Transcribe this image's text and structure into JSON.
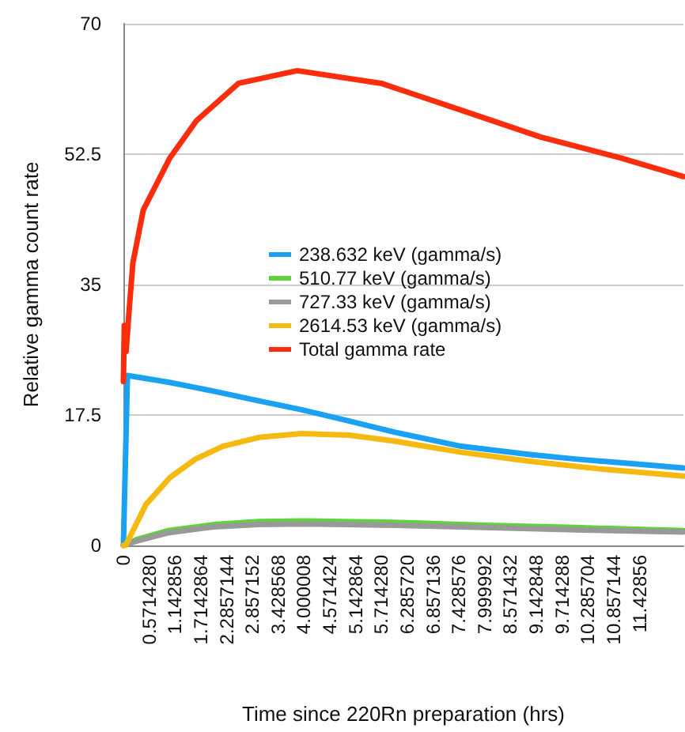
{
  "chart_data": {
    "type": "line",
    "xlabel": "Time since 220Rn preparation (hrs)",
    "ylabel": "Relative gamma count rate",
    "xlim": [
      0,
      12.4
    ],
    "ylim": [
      0,
      70
    ],
    "yticks": [
      0,
      {
        "value": 17.5,
        "label": "17.5"
      },
      35,
      {
        "value": 52.5,
        "label": "52.5"
      },
      70
    ],
    "xticks": [
      0,
      {
        "value": 0.571428,
        "label": "0.5714280"
      },
      {
        "value": 1.142856,
        "label": "1.142856"
      },
      {
        "value": 1.7142864,
        "label": "1.7142864"
      },
      {
        "value": 2.2857144,
        "label": "2.2857144"
      },
      {
        "value": 2.857152,
        "label": "2.857152"
      },
      {
        "value": 3.428568,
        "label": "3.428568"
      },
      {
        "value": 4.000008,
        "label": "4.000008"
      },
      {
        "value": 4.571424,
        "label": "4.571424"
      },
      {
        "value": 5.142864,
        "label": "5.142864"
      },
      {
        "value": 5.71428,
        "label": "5.714280"
      },
      {
        "value": 6.28572,
        "label": "6.285720"
      },
      {
        "value": 6.857136,
        "label": "6.857136"
      },
      {
        "value": 7.428576,
        "label": "7.428576"
      },
      {
        "value": 7.999992,
        "label": "7.999992"
      },
      {
        "value": 8.571432,
        "label": "8.571432"
      },
      {
        "value": 9.142848,
        "label": "9.142848"
      },
      {
        "value": 9.714288,
        "label": "9.714288"
      },
      {
        "value": 10.285704,
        "label": "10.285704"
      },
      {
        "value": 10.857144,
        "label": "10.857144"
      },
      {
        "value": 11.42856,
        "label": "11.42856"
      }
    ],
    "grid": "y",
    "legend": "center",
    "marker": "none",
    "line_style": "solid",
    "series": [
      {
        "name": "238.632 keV (gamma/s)",
        "color": "#1ba1f2",
        "x": [
          0,
          0.09,
          1,
          2,
          3,
          3.95,
          5,
          6,
          7.48,
          9,
          10,
          11,
          12.4
        ],
        "values": [
          0,
          22.8,
          21.9,
          20.7,
          19.4,
          18.2,
          16.7,
          15.2,
          13.3,
          12.2,
          11.6,
          11.1,
          10.4
        ]
      },
      {
        "name": "510.77 keV (gamma/s)",
        "color": "#5ed33c",
        "x": [
          0,
          0.3,
          1,
          2,
          3,
          4,
          6,
          8,
          10,
          12.4
        ],
        "values": [
          0,
          0.8,
          2,
          2.8,
          3.2,
          3.3,
          3.1,
          2.7,
          2.4,
          2
        ]
      },
      {
        "name": "727.33 keV (gamma/s)",
        "color": "#999999",
        "x": [
          0,
          0.3,
          1,
          2,
          3,
          4,
          6,
          8,
          10,
          12.4
        ],
        "values": [
          0,
          0.6,
          1.7,
          2.5,
          2.8,
          2.9,
          2.7,
          2.4,
          2.1,
          1.8
        ]
      },
      {
        "name": "2614.53 keV (gamma/s)",
        "color": "#f6b90f",
        "x": [
          0,
          0.05,
          0.5,
          1.03,
          1.6,
          2.2,
          3,
          3.95,
          5,
          6,
          7.48,
          9,
          10.5,
          12.4
        ],
        "values": [
          0,
          0,
          5.5,
          9.1,
          11.6,
          13.3,
          14.5,
          15,
          14.8,
          14,
          12.5,
          11.3,
          10.3,
          9.3
        ]
      },
      {
        "name": "Total gamma rate",
        "color": "#fb2d0c",
        "x": [
          0,
          0.02,
          0.06,
          0.12,
          0.21,
          0.44,
          1.03,
          1.62,
          2.55,
          3.85,
          5.71,
          7.48,
          9.24,
          11,
          12.4
        ],
        "values": [
          22,
          29.5,
          26,
          31,
          37.9,
          45,
          52,
          57,
          62,
          63.7,
          62,
          58.4,
          54.8,
          52,
          49.5
        ]
      }
    ]
  }
}
